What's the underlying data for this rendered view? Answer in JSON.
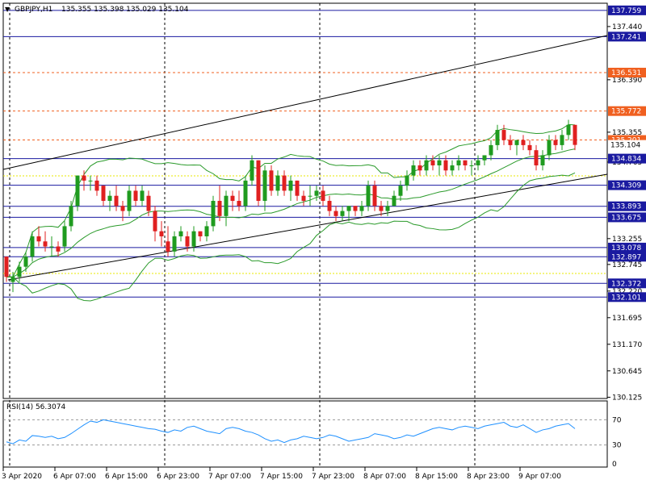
{
  "header": {
    "symbol_tf": "GBPJPY,H1",
    "ohlc": "135.355 135.398 135.029 135.104"
  },
  "rsi": {
    "label": "RSI(14) 56.3074",
    "levels": [
      "70",
      "30",
      "0"
    ],
    "level_values": [
      70,
      30,
      0
    ],
    "range": [
      -5,
      100
    ]
  },
  "time_labels": [
    "3 Apr 2020",
    "6 Apr 07:00",
    "6 Apr 15:00",
    "6 Apr 23:00",
    "7 Apr 07:00",
    "7 Apr 15:00",
    "7 Apr 23:00",
    "8 Apr 07:00",
    "8 Apr 15:00",
    "8 Apr 23:00",
    "9 Apr 07:00"
  ],
  "price_scale": [
    "137.440",
    "136.390",
    "135.355",
    "134.765",
    "133.255",
    "132.745",
    "132.220",
    "131.695",
    "131.170",
    "130.645",
    "130.125"
  ],
  "price_tick_values": [
    137.44,
    136.39,
    135.355,
    134.765,
    133.255,
    132.745,
    132.22,
    131.695,
    131.17,
    130.645,
    130.125
  ],
  "level_lines": [
    {
      "label": "137.759",
      "value": 137.759,
      "color": "#1a1aa0",
      "style": "solid"
    },
    {
      "label": "137.241",
      "value": 137.241,
      "color": "#1a1aa0",
      "style": "solid"
    },
    {
      "label": "136.531",
      "value": 136.531,
      "color": "#f06020",
      "style": "dash"
    },
    {
      "label": "135.772",
      "value": 135.772,
      "color": "#f06020",
      "style": "dash"
    },
    {
      "label": "135.201",
      "value": 135.201,
      "color": "#f06020",
      "style": "dash"
    },
    {
      "label": "134.834",
      "value": 134.834,
      "color": "#1a1aa0",
      "style": "solid"
    },
    {
      "label": "134.309",
      "value": 134.309,
      "color": "#1a1aa0",
      "style": "solid"
    },
    {
      "label": "133.893",
      "value": 133.893,
      "color": "#1a1aa0",
      "style": "solid"
    },
    {
      "label": "133.675",
      "value": 133.675,
      "color": "#1a1aa0",
      "style": "solid"
    },
    {
      "label": "133.078",
      "value": 133.078,
      "color": "#1a1aa0",
      "style": "solid"
    },
    {
      "label": "132.897",
      "value": 132.897,
      "color": "#1a1aa0",
      "style": "solid"
    },
    {
      "label": "132.372",
      "value": 132.372,
      "color": "#1a1aa0",
      "style": "solid"
    },
    {
      "label": "132.101",
      "value": 132.101,
      "color": "#1a1aa0",
      "style": "solid"
    }
  ],
  "current_price": {
    "label": "135.104",
    "value": 135.104
  },
  "colors": {
    "bull": "#1f9b1f",
    "bear": "#e02020",
    "band": "#2a9a2a",
    "rsi_line": "#1e90ff",
    "support": "#1a1aa0",
    "resistance": "#f06020",
    "yellow": "#e8e800"
  },
  "chart_data": {
    "type": "candlestick",
    "price_range": [
      130.1,
      137.9
    ],
    "candles": [
      [
        132.9,
        132.9,
        132.4,
        132.5
      ],
      [
        132.4,
        132.6,
        132.2,
        132.5
      ],
      [
        132.5,
        132.8,
        132.4,
        132.7
      ],
      [
        132.7,
        133.0,
        132.6,
        132.9
      ],
      [
        132.9,
        133.4,
        132.8,
        133.3
      ],
      [
        133.3,
        133.5,
        133.1,
        133.2
      ],
      [
        133.2,
        133.4,
        133.0,
        133.1
      ],
      [
        133.1,
        133.3,
        132.9,
        133.1
      ],
      [
        133.1,
        133.2,
        132.9,
        133.0
      ],
      [
        133.1,
        133.6,
        133.0,
        133.5
      ],
      [
        133.5,
        134.0,
        133.4,
        133.9
      ],
      [
        133.9,
        134.5,
        133.8,
        134.5
      ],
      [
        134.5,
        134.6,
        134.2,
        134.4
      ],
      [
        134.4,
        134.5,
        134.2,
        134.4
      ],
      [
        134.4,
        134.5,
        134.1,
        134.2
      ],
      [
        134.3,
        134.3,
        133.9,
        134.0
      ],
      [
        134.0,
        134.2,
        133.8,
        134.1
      ],
      [
        134.1,
        134.3,
        133.8,
        133.9
      ],
      [
        133.9,
        134.0,
        133.6,
        133.8
      ],
      [
        133.8,
        134.3,
        133.7,
        134.2
      ],
      [
        134.2,
        134.3,
        133.9,
        134.0
      ],
      [
        134.0,
        134.3,
        133.9,
        134.2
      ],
      [
        134.1,
        134.2,
        133.7,
        133.8
      ],
      [
        133.8,
        133.9,
        133.2,
        133.4
      ],
      [
        133.4,
        133.6,
        133.1,
        133.3
      ],
      [
        133.2,
        133.5,
        132.9,
        133.0
      ],
      [
        133.0,
        133.4,
        132.9,
        133.3
      ],
      [
        133.3,
        133.5,
        133.2,
        133.4
      ],
      [
        133.3,
        133.4,
        133.0,
        133.1
      ],
      [
        133.1,
        133.5,
        133.0,
        133.4
      ],
      [
        133.4,
        133.4,
        133.2,
        133.3
      ],
      [
        133.3,
        133.6,
        133.2,
        133.5
      ],
      [
        133.5,
        134.1,
        133.4,
        134.0
      ],
      [
        134.0,
        134.3,
        133.6,
        133.7
      ],
      [
        133.7,
        134.2,
        133.5,
        134.1
      ],
      [
        134.1,
        134.2,
        133.8,
        134.0
      ],
      [
        134.0,
        134.2,
        133.8,
        133.9
      ],
      [
        133.9,
        134.5,
        133.8,
        134.4
      ],
      [
        134.4,
        134.9,
        134.3,
        134.8
      ],
      [
        134.8,
        134.8,
        133.9,
        134.0
      ],
      [
        134.0,
        134.7,
        133.8,
        134.6
      ],
      [
        134.6,
        134.7,
        134.1,
        134.2
      ],
      [
        134.2,
        134.6,
        134.1,
        134.5
      ],
      [
        134.5,
        134.6,
        134.1,
        134.2
      ],
      [
        134.2,
        134.5,
        134.0,
        134.4
      ],
      [
        134.4,
        134.4,
        134.0,
        134.1
      ],
      [
        134.1,
        134.2,
        133.9,
        134.0
      ],
      [
        134.1,
        134.3,
        133.9,
        134.1
      ],
      [
        134.1,
        134.3,
        134.0,
        134.2
      ],
      [
        134.2,
        134.3,
        133.9,
        134.0
      ],
      [
        134.0,
        134.1,
        133.7,
        133.8
      ],
      [
        133.8,
        133.9,
        133.6,
        133.7
      ],
      [
        133.7,
        133.9,
        133.6,
        133.8
      ],
      [
        133.8,
        133.9,
        133.6,
        133.9
      ],
      [
        133.9,
        133.9,
        133.7,
        133.8
      ],
      [
        133.8,
        134.0,
        133.7,
        133.9
      ],
      [
        133.9,
        134.4,
        133.8,
        134.3
      ],
      [
        134.3,
        134.4,
        133.8,
        133.9
      ],
      [
        133.9,
        134.0,
        133.7,
        133.8
      ],
      [
        133.8,
        134.0,
        133.7,
        133.9
      ],
      [
        133.9,
        134.2,
        133.9,
        134.1
      ],
      [
        134.1,
        134.4,
        134.0,
        134.3
      ],
      [
        134.3,
        134.6,
        134.2,
        134.5
      ],
      [
        134.5,
        134.8,
        134.4,
        134.7
      ],
      [
        134.7,
        134.8,
        134.5,
        134.6
      ],
      [
        134.6,
        134.9,
        134.5,
        134.8
      ],
      [
        134.8,
        134.9,
        134.6,
        134.7
      ],
      [
        134.7,
        134.9,
        134.5,
        134.8
      ],
      [
        134.8,
        134.9,
        134.5,
        134.6
      ],
      [
        134.6,
        134.8,
        134.5,
        134.7
      ],
      [
        134.7,
        134.9,
        134.6,
        134.8
      ],
      [
        134.8,
        134.8,
        134.6,
        134.7
      ],
      [
        134.7,
        134.8,
        134.5,
        134.7
      ],
      [
        134.7,
        134.9,
        134.6,
        134.8
      ],
      [
        134.8,
        134.9,
        134.7,
        134.9
      ],
      [
        134.9,
        135.2,
        134.8,
        135.1
      ],
      [
        135.1,
        135.5,
        135.0,
        135.4
      ],
      [
        135.4,
        135.5,
        135.1,
        135.2
      ],
      [
        135.2,
        135.3,
        135.0,
        135.1
      ],
      [
        135.1,
        135.2,
        134.9,
        135.2
      ],
      [
        135.2,
        135.3,
        135.0,
        135.1
      ],
      [
        135.1,
        135.2,
        134.9,
        135.0
      ],
      [
        135.0,
        135.1,
        134.6,
        134.7
      ],
      [
        134.7,
        135.0,
        134.6,
        134.9
      ],
      [
        134.9,
        135.3,
        134.8,
        135.2
      ],
      [
        135.2,
        135.3,
        135.0,
        135.1
      ],
      [
        135.1,
        135.4,
        135.0,
        135.3
      ],
      [
        135.3,
        135.6,
        135.2,
        135.5
      ],
      [
        135.5,
        135.5,
        135.0,
        135.104
      ]
    ],
    "rsi_values": [
      35,
      32,
      38,
      36,
      45,
      44,
      42,
      44,
      40,
      42,
      48,
      55,
      62,
      68,
      66,
      70,
      68,
      66,
      64,
      62,
      60,
      58,
      56,
      55,
      52,
      50,
      54,
      52,
      58,
      60,
      56,
      52,
      50,
      48,
      56,
      58,
      56,
      52,
      50,
      46,
      40,
      36,
      38,
      34,
      38,
      40,
      44,
      42,
      40,
      42,
      46,
      44,
      40,
      36,
      38,
      40,
      42,
      48,
      46,
      44,
      40,
      42,
      46,
      44,
      48,
      52,
      56,
      58,
      56,
      54,
      58,
      60,
      58,
      56,
      60,
      62,
      64,
      66,
      60,
      58,
      62,
      56,
      50,
      54,
      56,
      60,
      62,
      64,
      56
    ]
  }
}
